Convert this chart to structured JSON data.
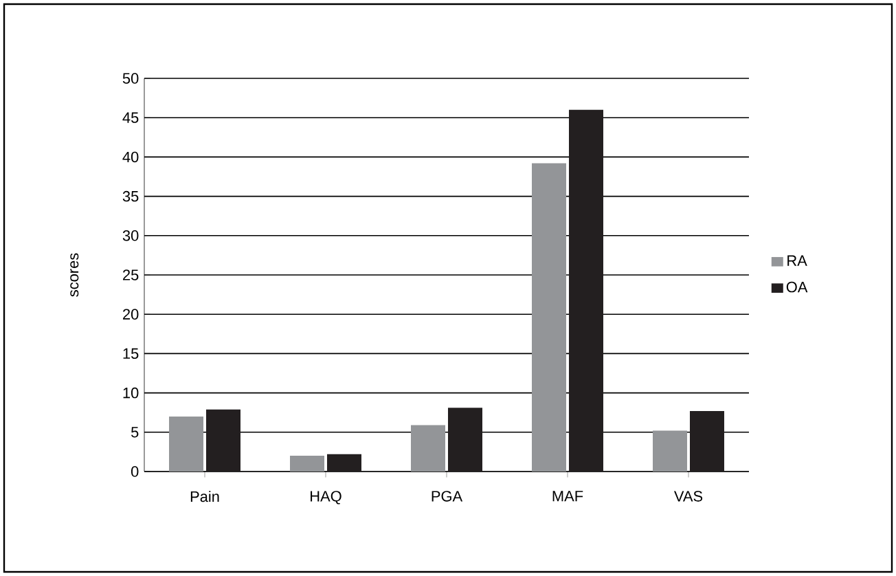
{
  "chart_data": {
    "type": "bar",
    "ylabel": "scores",
    "categories": [
      "Pain",
      "HAQ",
      "PGA",
      "MAF",
      "VAS"
    ],
    "series": [
      {
        "name": "RA",
        "color": "#939598",
        "values": [
          7.0,
          2.0,
          5.9,
          39.2,
          5.2
        ]
      },
      {
        "name": "OA",
        "color": "#231f20",
        "values": [
          7.9,
          2.2,
          8.1,
          46.0,
          7.7
        ]
      }
    ],
    "ylim": [
      0,
      50
    ],
    "yticks": [
      0,
      5,
      10,
      15,
      20,
      25,
      30,
      35,
      40,
      45,
      50
    ],
    "grid": "y",
    "legend": "right"
  }
}
